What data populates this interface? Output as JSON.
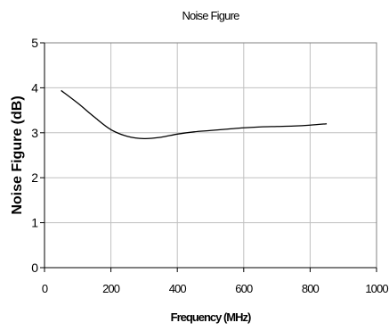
{
  "chart_data": {
    "type": "line",
    "title": "Noise Figure",
    "xlabel": "Frequency (MHz)",
    "ylabel": "Noise Figure (dB)",
    "xlim": [
      0,
      1000
    ],
    "ylim": [
      0,
      5
    ],
    "x_ticks": [
      "0",
      "200",
      "400",
      "600",
      "800",
      "1000"
    ],
    "y_ticks": [
      "0",
      "1",
      "2",
      "3",
      "4",
      "5"
    ],
    "grid": true,
    "legend": "none",
    "line_color": "#000000",
    "grid_color": "#c0c0c0",
    "series": [
      {
        "x": [
          50,
          100,
          150,
          200,
          250,
          300,
          350,
          400,
          450,
          500,
          550,
          600,
          650,
          700,
          750,
          800,
          850
        ],
        "y": [
          3.94,
          3.66,
          3.35,
          3.07,
          2.92,
          2.87,
          2.9,
          2.97,
          3.02,
          3.05,
          3.08,
          3.11,
          3.13,
          3.14,
          3.15,
          3.17,
          3.2
        ]
      }
    ]
  }
}
